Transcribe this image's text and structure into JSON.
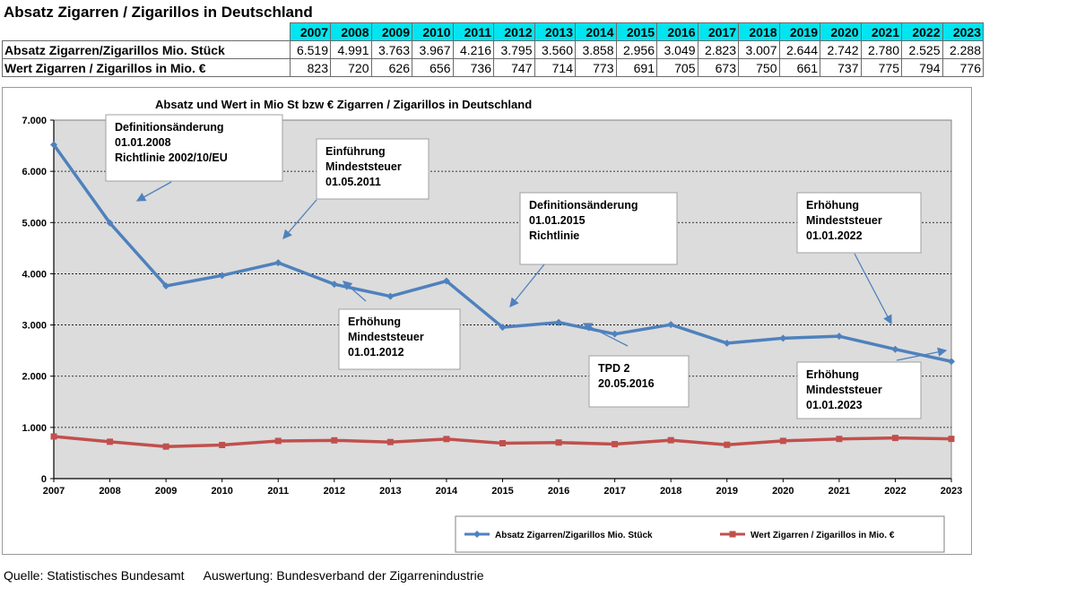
{
  "page": {
    "title": "Absatz Zigarren / Zigarillos in Deutschland",
    "source": "Quelle: Statistisches Bundesamt",
    "evaluation": "Auswertung: Bundesverband der Zigarrenindustrie"
  },
  "table": {
    "years": [
      "2007",
      "2008",
      "2009",
      "2010",
      "2011",
      "2012",
      "2013",
      "2014",
      "2015",
      "2016",
      "2017",
      "2018",
      "2019",
      "2020",
      "2021",
      "2022",
      "2023"
    ],
    "rows": [
      {
        "label": "Absatz Zigarren/Zigarillos Mio. Stück",
        "values": [
          "6.519",
          "4.991",
          "3.763",
          "3.967",
          "4.216",
          "3.795",
          "3.560",
          "3.858",
          "2.956",
          "3.049",
          "2.823",
          "3.007",
          "2.644",
          "2.742",
          "2.780",
          "2.525",
          "2.288"
        ]
      },
      {
        "label": "Wert Zigarren / Zigarillos in Mio. €",
        "values": [
          "823",
          "720",
          "626",
          "656",
          "736",
          "747",
          "714",
          "773",
          "691",
          "705",
          "673",
          "750",
          "661",
          "737",
          "775",
          "794",
          "776"
        ]
      }
    ]
  },
  "chart_data": {
    "type": "line",
    "title": "Absatz  und Wert in Mio St bzw € Zigarren / Zigarillos in Deutschland",
    "categories": [
      "2007",
      "2008",
      "2009",
      "2010",
      "2011",
      "2012",
      "2013",
      "2014",
      "2015",
      "2016",
      "2017",
      "2018",
      "2019",
      "2020",
      "2021",
      "2022",
      "2023"
    ],
    "ylim": [
      0,
      7000
    ],
    "yticks": [
      {
        "value": 0,
        "label": "0"
      },
      {
        "value": 1000,
        "label": "1.000"
      },
      {
        "value": 2000,
        "label": "2.000"
      },
      {
        "value": 3000,
        "label": "3.000"
      },
      {
        "value": 4000,
        "label": "4.000"
      },
      {
        "value": 5000,
        "label": "5.000"
      },
      {
        "value": 6000,
        "label": "6.000"
      },
      {
        "value": 7000,
        "label": "7.000"
      }
    ],
    "grid": true,
    "legend_position": "bottom-right",
    "series": [
      {
        "name": "Absatz Zigarren/Zigarillos Mio. Stück",
        "color": "#4f81bd",
        "marker": "diamond",
        "values": [
          6519,
          4991,
          3763,
          3967,
          4216,
          3795,
          3560,
          3858,
          2956,
          3049,
          2823,
          3007,
          2644,
          2742,
          2780,
          2525,
          2288
        ]
      },
      {
        "name": "Wert Zigarren / Zigarillos in Mio. €",
        "color": "#c0504d",
        "marker": "square",
        "values": [
          823,
          720,
          626,
          656,
          736,
          747,
          714,
          773,
          691,
          705,
          673,
          750,
          661,
          737,
          775,
          794,
          776
        ]
      }
    ],
    "annotations": [
      {
        "lines": [
          "Definitionsänderung",
          "01.01.2008",
          "Richtlinie  2002/10/EU"
        ],
        "target_year": "2008"
      },
      {
        "lines": [
          "Einführung",
          "Mindeststeuer",
          "01.05.2011"
        ],
        "target_year": "2011"
      },
      {
        "lines": [
          "Erhöhung",
          "Mindeststeuer",
          "01.01.2012"
        ],
        "target_year": "2012"
      },
      {
        "lines": [
          "Definitionsänderung",
          "01.01.2015",
          "Richtlinie"
        ],
        "target_year": "2015"
      },
      {
        "lines": [
          "TPD 2",
          "20.05.2016"
        ],
        "target_year": "2016"
      },
      {
        "lines": [
          "Erhöhung",
          "Mindeststeuer",
          "01.01.2022"
        ],
        "target_year": "2022"
      },
      {
        "lines": [
          "Erhöhung",
          "Mindeststeuer",
          "01.01.2023"
        ],
        "target_year": "2023"
      }
    ]
  }
}
